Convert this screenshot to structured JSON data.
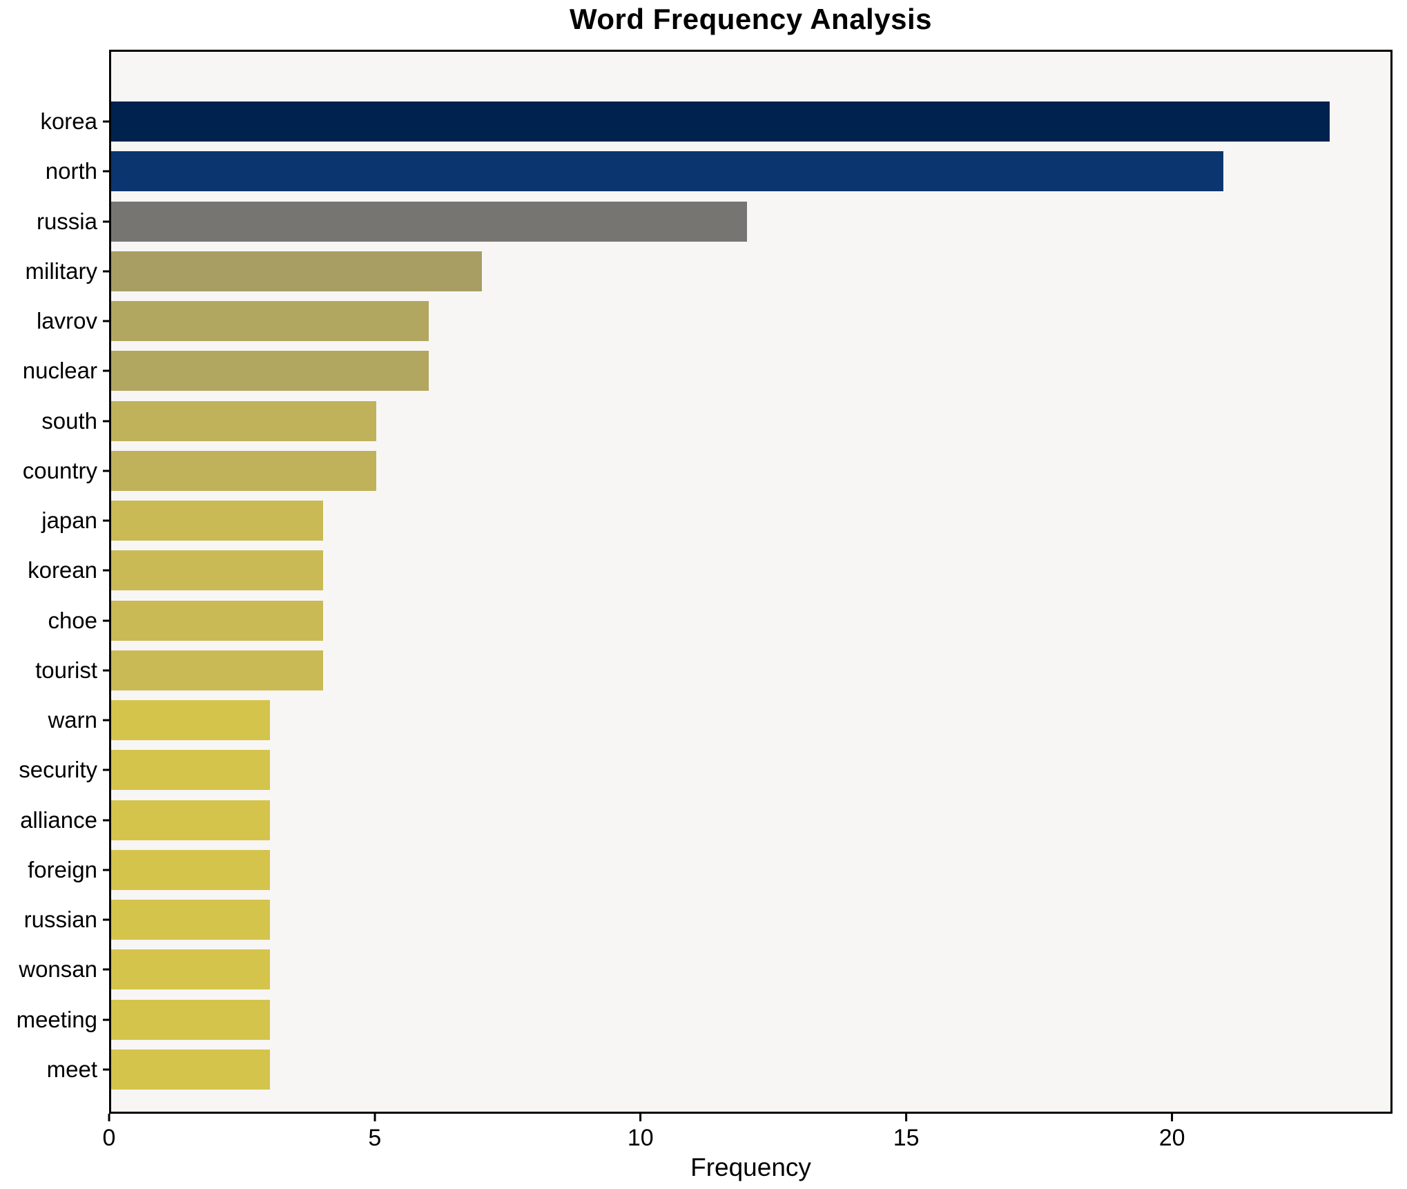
{
  "title": "Word Frequency Analysis",
  "chart_data": {
    "type": "bar",
    "orientation": "horizontal",
    "title": "Word Frequency Analysis",
    "xlabel": "Frequency",
    "ylabel": "",
    "xlim": [
      0,
      24.15
    ],
    "xticks": [
      0,
      5,
      10,
      15,
      20
    ],
    "grid": false,
    "legend": "none",
    "categories": [
      "korea",
      "north",
      "russia",
      "military",
      "lavrov",
      "nuclear",
      "south",
      "country",
      "japan",
      "korean",
      "choe",
      "tourist",
      "warn",
      "security",
      "alliance",
      "foreign",
      "russian",
      "wonsan",
      "meeting",
      "meet"
    ],
    "values": [
      23,
      21,
      12,
      7,
      6,
      6,
      5,
      5,
      4,
      4,
      4,
      4,
      3,
      3,
      3,
      3,
      3,
      3,
      3,
      3
    ],
    "bar_colors": [
      "#00224e",
      "#0b356f",
      "#767572",
      "#a89e63",
      "#b2a760",
      "#b2a760",
      "#bfb25b",
      "#bfb25b",
      "#c9ba55",
      "#c9ba55",
      "#c9ba55",
      "#c9ba55",
      "#d5c44b",
      "#d5c44b",
      "#d5c44b",
      "#d5c44b",
      "#d5c44b",
      "#d5c44b",
      "#d5c44b",
      "#d5c44b"
    ],
    "colormap_note": "cividis-style gradient, highest frequency = dark navy, lowest = yellow",
    "plot_background": "#f7f6f5",
    "figure_background": "#ffffff",
    "axis_color": "#000000"
  }
}
